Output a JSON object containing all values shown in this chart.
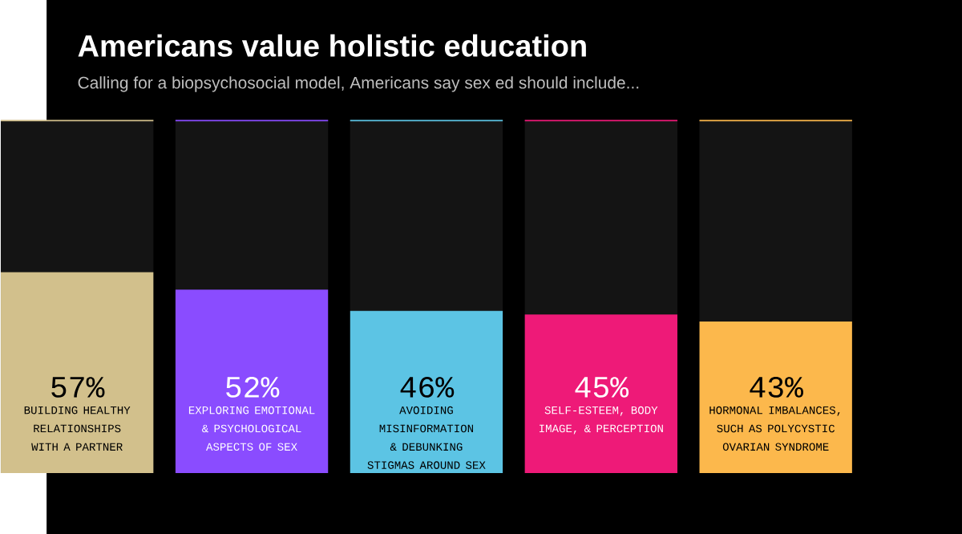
{
  "chart_data": {
    "type": "bar",
    "title": "Americans value holistic education",
    "subtitle": "Calling for a biopsychosocial model, Americans say sex ed should include...",
    "categories": [
      "BUILDING HEALTHY RELATIONSHIPS WITH A PARTNER",
      "EXPLORING EMOTIONAL & PSYCHOLOGICAL ASPECTS OF SEX",
      "AVOIDING MISINFORMATION & DEBUNKING STIGMAS AROUND SEX",
      "SELF-ESTEEM, BODY IMAGE, & PERCEPTION",
      "HORMONAL IMBALANCES, SUCH AS POLYCYSTIC OVARIAN SYNDROME"
    ],
    "values": [
      57,
      52,
      46,
      45,
      43
    ],
    "value_labels": [
      "57%",
      "52%",
      "46%",
      "45%",
      "43%"
    ],
    "colors": [
      "#d2c08c",
      "#8a4cff",
      "#5cc4e4",
      "#ee1a78",
      "#fcb84c"
    ],
    "ylim": [
      0,
      100
    ]
  }
}
